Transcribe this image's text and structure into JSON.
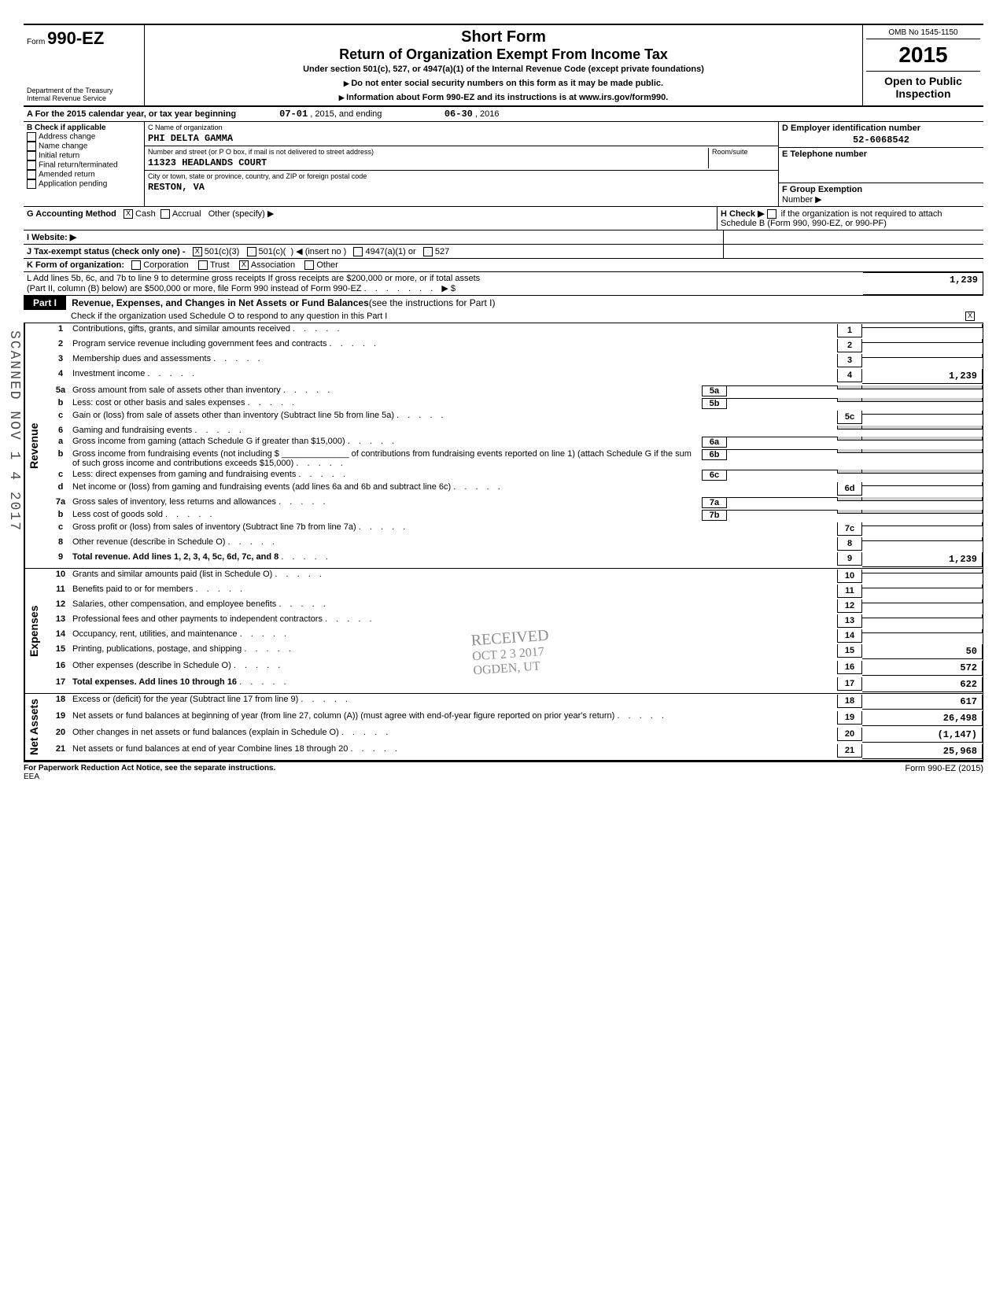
{
  "header": {
    "form_prefix": "Form",
    "form_number": "990-EZ",
    "dept": "Department of the Treasury",
    "irs": "Internal Revenue Service",
    "title1": "Short Form",
    "title2": "Return of Organization Exempt From Income Tax",
    "subtitle": "Under section 501(c), 527, or 4947(a)(1) of the Internal Revenue Code (except private foundations)",
    "notice1": "Do not enter social security numbers on this form as it may be made public.",
    "notice2": "Information about Form 990-EZ and its instructions is at www.irs.gov/form990.",
    "omb": "OMB No 1545-1150",
    "year": "2015",
    "open": "Open to Public Inspection"
  },
  "sectionA": {
    "label": "A  For the 2015 calendar year, or tax year beginning",
    "start": "07-01",
    "mid": ", 2015, and ending",
    "end": "06-30",
    "end_year": ", 2016"
  },
  "sectionB": {
    "label": "B  Check if applicable",
    "items": [
      "Address change",
      "Name change",
      "Initial return",
      "Final return/terminated",
      "Amended return",
      "Application pending"
    ]
  },
  "sectionC": {
    "name_label": "C  Name of organization",
    "name_value": "PHI DELTA GAMMA",
    "addr_label": "Number and street (or P O box, if mail is not delivered to street address)",
    "room_label": "Room/suite",
    "addr_value": "11323 HEADLANDS COURT",
    "city_label": "City or town, state or province, country, and ZIP or foreign postal code",
    "city_value": "RESTON, VA"
  },
  "sectionD": {
    "label": "D  Employer identification number",
    "value": "52-6068542"
  },
  "sectionE": {
    "label": "E  Telephone number",
    "value": ""
  },
  "sectionF": {
    "label": "F  Group Exemption",
    "sub": "Number  ▶"
  },
  "sectionG": {
    "label": "G  Accounting Method",
    "cash": "Cash",
    "accrual": "Accrual",
    "other": "Other (specify) ▶"
  },
  "sectionH": {
    "label": "H  Check ▶",
    "text": "if the organization is not required to attach Schedule B (Form 990, 990-EZ, or 990-PF)"
  },
  "sectionI": {
    "label": "I   Website:  ▶"
  },
  "sectionJ": {
    "label": "J   Tax-exempt status (check only one) -",
    "opts": [
      "501(c)(3)",
      "501(c)(",
      "(insert no )",
      "4947(a)(1) or",
      "527"
    ]
  },
  "sectionK": {
    "label": "K  Form of organization:",
    "opts": [
      "Corporation",
      "Trust",
      "Association",
      "Other"
    ]
  },
  "sectionL": {
    "line1": "L  Add lines 5b, 6c, and 7b to line 9 to determine gross receipts  If gross receipts are $200,000 or more, or if total assets",
    "line2": "(Part II, column (B) below) are $500,000 or more, file Form 990 instead of Form 990-EZ",
    "value": "1,239"
  },
  "part1": {
    "label": "Part I",
    "title": "Revenue, Expenses, and Changes in Net Assets or Fund Balances",
    "aside": "(see the instructions for Part I)",
    "check_text": "Check if the organization used Schedule O to respond to any question in this Part I"
  },
  "lines": {
    "l1": {
      "n": "1",
      "t": "Contributions, gifts, grants, and similar amounts received",
      "v": ""
    },
    "l2": {
      "n": "2",
      "t": "Program service revenue including government fees and contracts",
      "v": ""
    },
    "l3": {
      "n": "3",
      "t": "Membership dues and assessments",
      "v": ""
    },
    "l4": {
      "n": "4",
      "t": "Investment income",
      "v": "1,239"
    },
    "l5a": {
      "n": "5a",
      "t": "Gross amount from sale of assets other than inventory",
      "sub": "5a"
    },
    "l5b": {
      "n": "b",
      "t": "Less: cost or other basis and sales expenses",
      "sub": "5b"
    },
    "l5c": {
      "n": "c",
      "t": "Gain or (loss) from sale of assets other than inventory (Subtract line 5b from line 5a)",
      "box": "5c",
      "v": ""
    },
    "l6": {
      "n": "6",
      "t": "Gaming and fundraising events"
    },
    "l6a": {
      "n": "a",
      "t": "Gross income from gaming (attach Schedule G if greater than $15,000)",
      "sub": "6a"
    },
    "l6b": {
      "n": "b",
      "t": "Gross income from fundraising events (not including $",
      "t2": "of contributions from fundraising events reported on line 1) (attach Schedule G if the sum of such gross income and contributions exceeds $15,000)",
      "sub": "6b"
    },
    "l6c": {
      "n": "c",
      "t": "Less: direct expenses from gaming and fundraising events",
      "sub": "6c"
    },
    "l6d": {
      "n": "d",
      "t": "Net income or (loss) from gaming and fundraising events (add lines 6a and 6b and subtract line 6c)",
      "box": "6d",
      "v": ""
    },
    "l7a": {
      "n": "7a",
      "t": "Gross sales of inventory, less returns and allowances",
      "sub": "7a"
    },
    "l7b": {
      "n": "b",
      "t": "Less cost of goods sold",
      "sub": "7b"
    },
    "l7c": {
      "n": "c",
      "t": "Gross profit or (loss) from sales of inventory (Subtract line 7b from line 7a)",
      "box": "7c",
      "v": ""
    },
    "l8": {
      "n": "8",
      "t": "Other revenue (describe in Schedule O)",
      "box": "8",
      "v": ""
    },
    "l9": {
      "n": "9",
      "t": "Total revenue.  Add lines 1, 2, 3, 4, 5c, 6d, 7c, and 8",
      "box": "9",
      "v": "1,239",
      "bold": true
    },
    "l10": {
      "n": "10",
      "t": "Grants and similar amounts paid (list in Schedule O)",
      "box": "10",
      "v": ""
    },
    "l11": {
      "n": "11",
      "t": "Benefits paid to or for members",
      "box": "11",
      "v": ""
    },
    "l12": {
      "n": "12",
      "t": "Salaries, other compensation, and employee benefits",
      "box": "12",
      "v": ""
    },
    "l13": {
      "n": "13",
      "t": "Professional fees and other payments to independent contractors",
      "box": "13",
      "v": ""
    },
    "l14": {
      "n": "14",
      "t": "Occupancy, rent, utilities, and maintenance",
      "box": "14",
      "v": ""
    },
    "l15": {
      "n": "15",
      "t": "Printing, publications, postage, and shipping",
      "box": "15",
      "v": "50"
    },
    "l16": {
      "n": "16",
      "t": "Other expenses (describe in Schedule O)",
      "box": "16",
      "v": "572"
    },
    "l17": {
      "n": "17",
      "t": "Total expenses.  Add lines 10 through 16",
      "box": "17",
      "v": "622",
      "bold": true
    },
    "l18": {
      "n": "18",
      "t": "Excess or (deficit) for the year (Subtract line 17 from line 9)",
      "box": "18",
      "v": "617"
    },
    "l19": {
      "n": "19",
      "t": "Net assets or fund balances at beginning of year (from line 27, column (A)) (must agree with end-of-year figure reported on prior year's return)",
      "box": "19",
      "v": "26,498"
    },
    "l20": {
      "n": "20",
      "t": "Other changes in net assets or fund balances (explain in Schedule O)",
      "box": "20",
      "v": "(1,147)"
    },
    "l21": {
      "n": "21",
      "t": "Net assets or fund balances at end of year  Combine lines 18 through 20",
      "box": "21",
      "v": "25,968"
    }
  },
  "sections": {
    "revenue": "Revenue",
    "expenses": "Expenses",
    "netassets": "Net Assets"
  },
  "footer": {
    "left": "For Paperwork Reduction Act Notice, see the separate instructions.",
    "sub": "EEA",
    "right": "Form 990-EZ (2015)"
  },
  "stamps": {
    "received": "RECEIVED",
    "date": "OCT 2 3 2017",
    "ogden": "OGDEN, UT",
    "scan": "SCANNED NOV 1 4 2017"
  },
  "colors": {
    "text": "#000000",
    "bg": "#ffffff",
    "shaded": "#d0d0d0"
  }
}
